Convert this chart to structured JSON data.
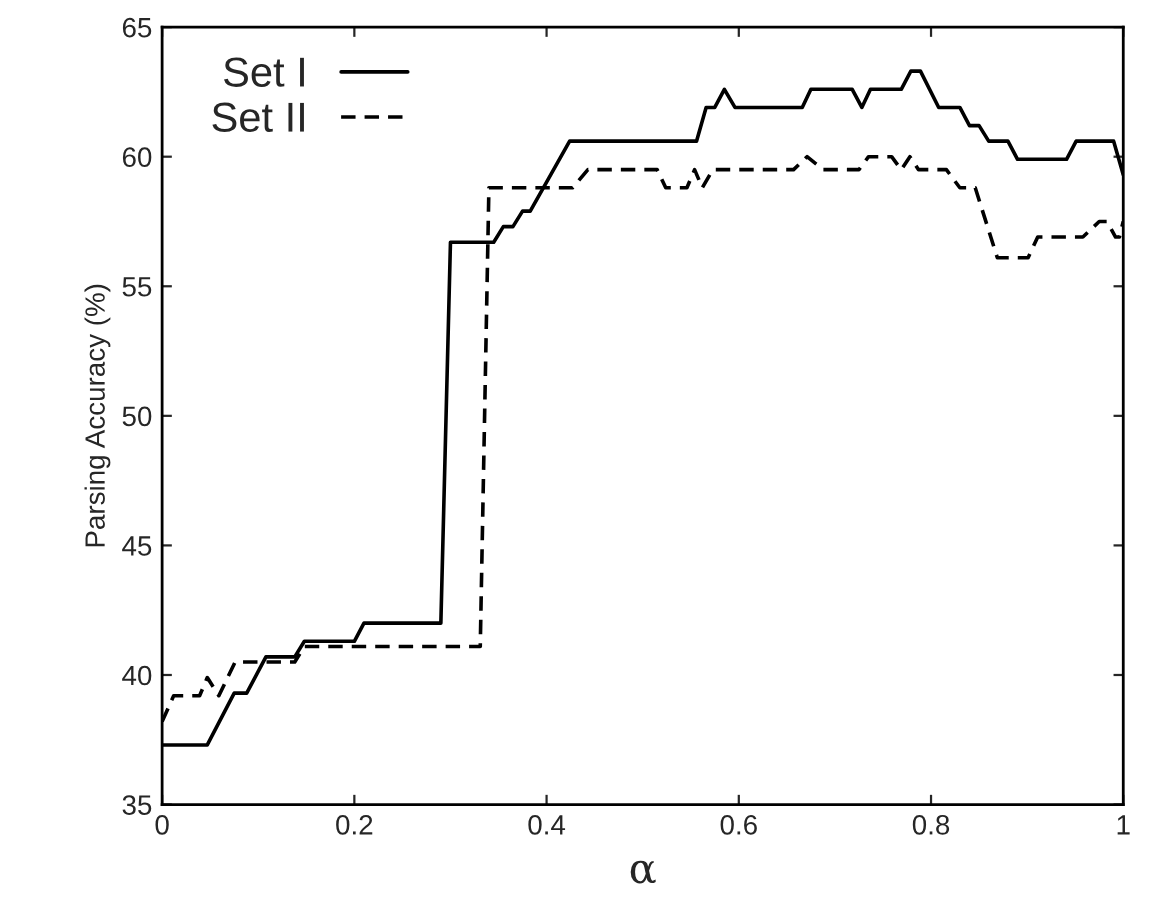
{
  "chart_data": {
    "type": "line",
    "xlabel": "α",
    "ylabel": "Parsing Accuracy (%)",
    "xlim": [
      0,
      1
    ],
    "ylim": [
      35,
      65
    ],
    "xticks": [
      0,
      0.2,
      0.4,
      0.6,
      0.8,
      1
    ],
    "yticks": [
      35,
      40,
      45,
      50,
      55,
      60,
      65
    ],
    "grid": false,
    "legend": "top left",
    "marker": "none",
    "series": [
      {
        "name": "Set I",
        "color": "#000000",
        "line_style": "solid",
        "x": [
          0,
          0.047,
          0.075,
          0.088,
          0.108,
          0.138,
          0.148,
          0.2,
          0.21,
          0.29,
          0.3,
          0.345,
          0.355,
          0.365,
          0.375,
          0.383,
          0.424,
          0.556,
          0.566,
          0.575,
          0.585,
          0.596,
          0.666,
          0.675,
          0.718,
          0.728,
          0.737,
          0.769,
          0.779,
          0.789,
          0.808,
          0.83,
          0.84,
          0.85,
          0.86,
          0.88,
          0.89,
          0.941,
          0.951,
          0.99,
          1.0
        ],
        "values": [
          37.3,
          37.3,
          39.3,
          39.3,
          40.7,
          40.7,
          41.3,
          41.3,
          42.0,
          42.0,
          56.7,
          56.7,
          57.3,
          57.3,
          57.9,
          57.9,
          60.6,
          60.6,
          61.9,
          61.9,
          62.6,
          61.9,
          61.9,
          62.6,
          62.6,
          61.9,
          62.6,
          62.6,
          63.3,
          63.3,
          61.9,
          61.9,
          61.2,
          61.2,
          60.6,
          60.6,
          59.9,
          59.9,
          60.6,
          60.6,
          59.3
        ]
      },
      {
        "name": "Set II",
        "color": "#000000",
        "line_style": "dashed",
        "x": [
          0,
          0.012,
          0.039,
          0.047,
          0.059,
          0.076,
          0.138,
          0.148,
          0.331,
          0.34,
          0.427,
          0.443,
          0.515,
          0.524,
          0.546,
          0.554,
          0.562,
          0.573,
          0.657,
          0.671,
          0.688,
          0.725,
          0.735,
          0.759,
          0.769,
          0.778,
          0.787,
          0.816,
          0.83,
          0.846,
          0.869,
          0.901,
          0.911,
          0.958,
          0.975,
          0.983,
          0.992,
          0.996,
          1.0
        ],
        "values": [
          38.2,
          39.2,
          39.2,
          39.9,
          39.2,
          40.5,
          40.5,
          41.1,
          41.1,
          58.8,
          58.8,
          59.5,
          59.5,
          58.8,
          58.8,
          59.5,
          58.8,
          59.5,
          59.5,
          60.0,
          59.5,
          59.5,
          60.0,
          60.0,
          59.5,
          60.0,
          59.5,
          59.5,
          58.8,
          58.8,
          56.1,
          56.1,
          56.9,
          56.9,
          57.5,
          57.5,
          56.9,
          56.9,
          57.5
        ]
      }
    ]
  }
}
